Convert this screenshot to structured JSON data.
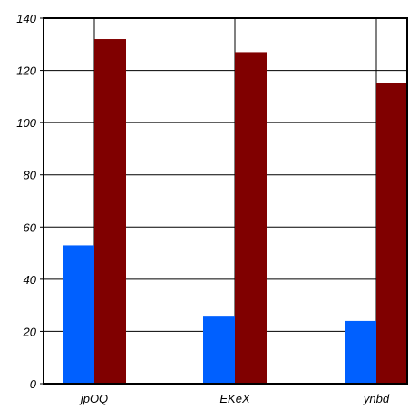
{
  "chart_data": {
    "type": "bar",
    "categories": [
      "jpOQ",
      "EKeX",
      "ynbd"
    ],
    "series": [
      {
        "values": [
          53,
          26,
          24
        ],
        "color": "#0060ff"
      },
      {
        "values": [
          132,
          127,
          115
        ],
        "color": "#800000"
      }
    ],
    "yticks": [
      "0",
      "20",
      "40",
      "60",
      "80",
      "100",
      "120",
      "140"
    ],
    "ylim": [
      0,
      140
    ],
    "grid": true,
    "legend": false
  }
}
